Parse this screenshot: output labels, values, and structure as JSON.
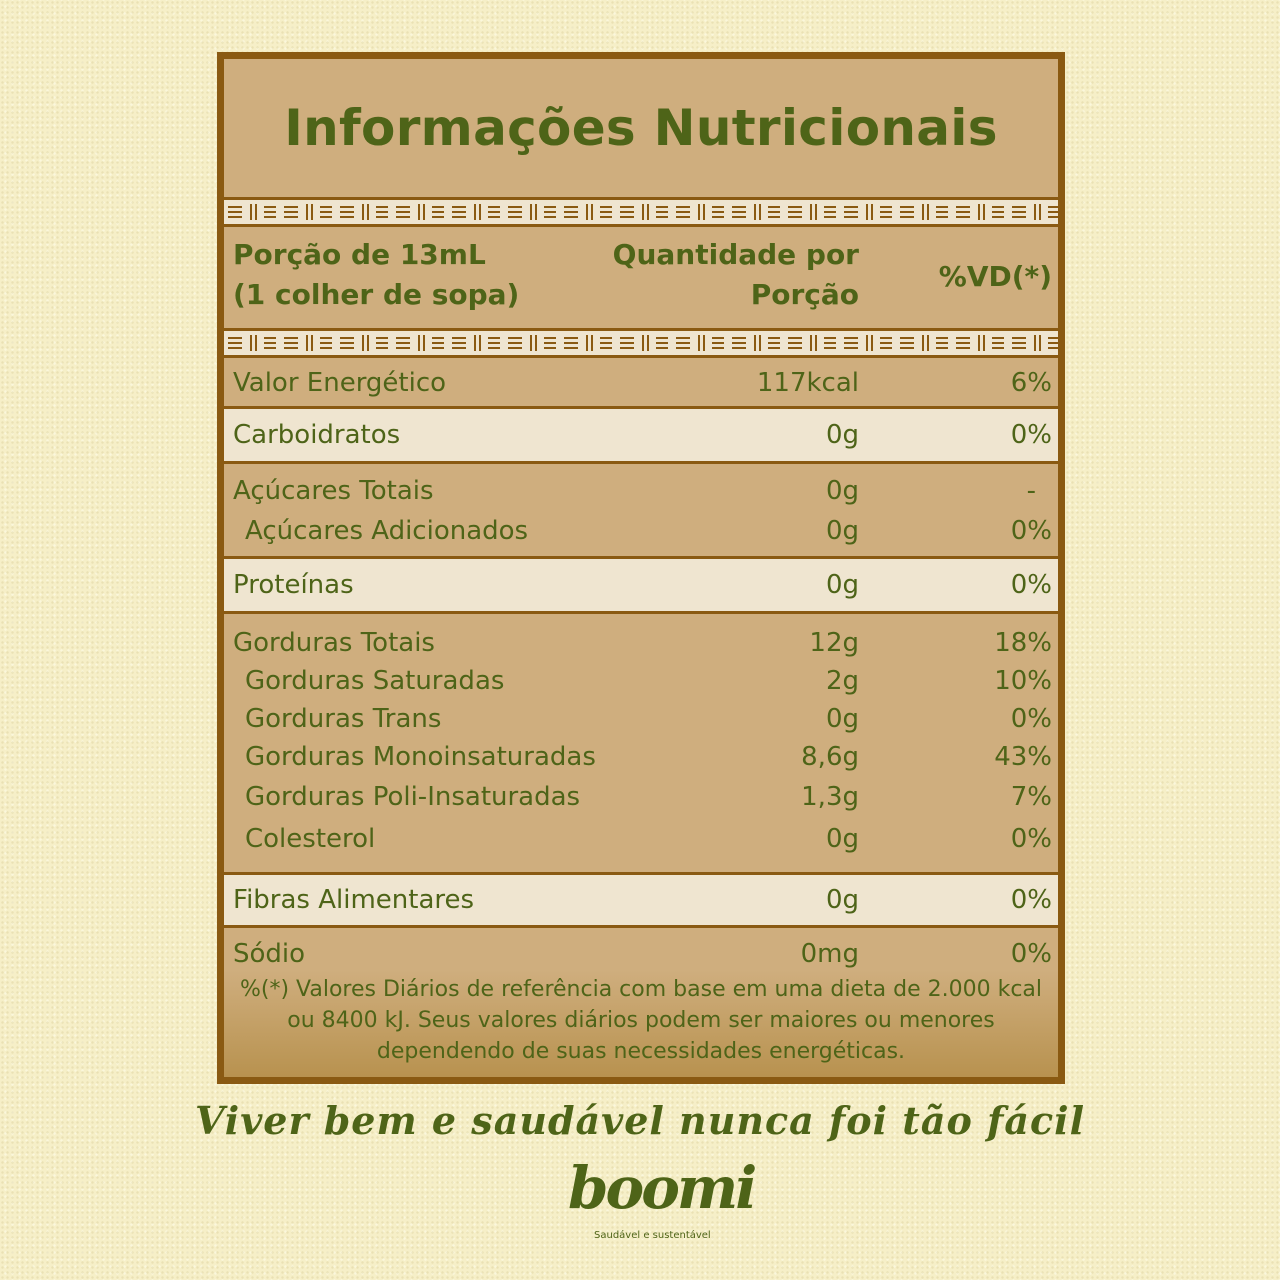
{
  "title": "Informações Nutricionais",
  "header": {
    "portion_line1": "Porção de 13mL",
    "portion_line2": "(1 colher de sopa)",
    "qty_line1": "Quantidade por",
    "qty_line2": "Porção",
    "vd": "%VD(*)"
  },
  "rows": [
    {
      "label": "Valor Energético",
      "qty": "117kcal",
      "vd": "6%"
    },
    {
      "label": "Carboidratos",
      "qty": "0g",
      "vd": "0%"
    },
    {
      "label": "Açúcares Totais",
      "qty": "0g",
      "vd": "-"
    },
    {
      "label": "Açúcares Adicionados",
      "qty": "0g",
      "vd": "0%"
    },
    {
      "label": "Proteínas",
      "qty": "0g",
      "vd": "0%"
    },
    {
      "label": "Gorduras Totais",
      "qty": "12g",
      "vd": "18%"
    },
    {
      "label": "Gorduras Saturadas",
      "qty": "2g",
      "vd": "10%"
    },
    {
      "label": "Gorduras Trans",
      "qty": "0g",
      "vd": "0%"
    },
    {
      "label": "Gorduras Monoinsaturadas",
      "qty": "8,6g",
      "vd": "43%"
    },
    {
      "label": "Gorduras Poli-Insaturadas",
      "qty": "1,3g",
      "vd": "7%"
    },
    {
      "label": "Colesterol",
      "qty": "0g",
      "vd": "0%"
    },
    {
      "label": "Fibras Alimentares",
      "qty": "0g",
      "vd": "0%"
    },
    {
      "label": "Sódio",
      "qty": "0mg",
      "vd": "0%"
    }
  ],
  "footnote": {
    "line1": "%(*) Valores Diários de referência com base em uma dieta de 2.000 kcal",
    "line2": "ou 8400 kJ. Seus valores diários podem ser maiores ou menores",
    "line3": "dependendo de suas necessidades energéticas."
  },
  "slogan": "Viver bem e saudável nunca foi tão fácil",
  "logo": {
    "word": "boomi",
    "tagline": "Saudável e sustentável"
  },
  "colors": {
    "green": "#4e6418",
    "brown": "#8a5a12",
    "tan": "#cfae7e",
    "cream": "#efe5d0"
  }
}
